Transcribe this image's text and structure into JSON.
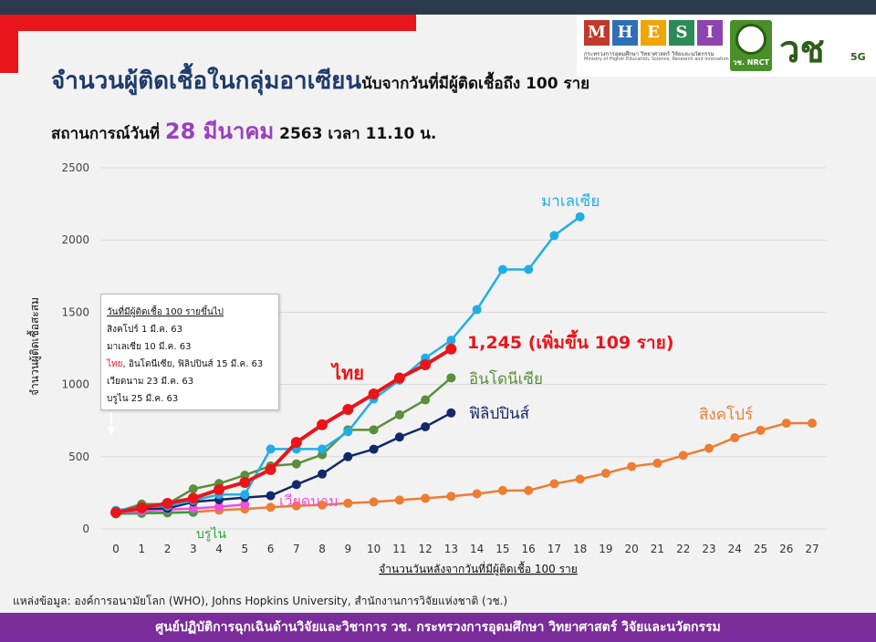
{
  "header": {
    "title_main": "จำนวนผู้ติดเชื้อในกลุ่มอาเซียน",
    "title_sub": "นับจากวันที่มีผู้ติดเชื้อถึง 100 ราย",
    "status_prefix": "สถานการณ์วันที่",
    "status_date": "28 มีนาคม",
    "status_suffix": "2563 เวลา 11.10 น."
  },
  "logos": {
    "mhesi_letters": [
      "M",
      "H",
      "E",
      "S",
      "I"
    ],
    "mhesi_colors": [
      "#c0392b",
      "#2e6fb5",
      "#f0a500",
      "#2e8b57",
      "#8e44ad"
    ],
    "mhesi_thai": "กระทรวงการอุดมศึกษา วิทยาศาสตร์ วิจัยและนวัตกรรม",
    "mhesi_en": "Ministry of Higher Education, Science, Research and Innovation",
    "nrct": "วช. NRCT",
    "vc_mark": "วช",
    "vc_5g": "5G"
  },
  "legend_box": {
    "heading": "วันที่มีผู้ติดเชื้อ 100 รายขึ้นไป",
    "rows": [
      {
        "text": "สิงคโปร์    1 มี.ค. 63",
        "highlight": ""
      },
      {
        "text": "มาเลเซีย  10 มี.ค. 63",
        "highlight": ""
      },
      {
        "text": ", อินโดนีเซีย, ฟิลิปปินส์  15 มี.ค. 63",
        "highlight": "ไทย"
      },
      {
        "text": "เวียดนาม 23 มี.ค. 63",
        "highlight": ""
      },
      {
        "text": "บรูไน   25 มี.ค. 63",
        "highlight": ""
      }
    ]
  },
  "chart_data": {
    "type": "line",
    "xlabel": "จำนวนวันหลังจากวันที่มีผู้ติดเชื้อ 100 ราย",
    "ylabel": "จำนวนผู้ติดเชื้อสะสม",
    "xlim": [
      0,
      27
    ],
    "ylim": [
      0,
      2500
    ],
    "x_ticks": [
      0,
      1,
      2,
      3,
      4,
      5,
      6,
      7,
      8,
      9,
      10,
      11,
      12,
      13,
      14,
      15,
      16,
      17,
      18,
      19,
      20,
      21,
      22,
      23,
      24,
      25,
      26,
      27
    ],
    "y_ticks": [
      0,
      500,
      1000,
      1500,
      2000,
      2500
    ],
    "grid": "horizontal",
    "series": [
      {
        "name": "สิงคโปร์",
        "color": "#ed7d31",
        "x": [
          0,
          1,
          2,
          3,
          4,
          5,
          6,
          7,
          8,
          9,
          10,
          11,
          12,
          13,
          14,
          15,
          16,
          17,
          18,
          19,
          20,
          21,
          22,
          23,
          24,
          25,
          26,
          27
        ],
        "y": [
          106,
          108,
          110,
          117,
          130,
          138,
          150,
          160,
          166,
          178,
          187,
          200,
          212,
          226,
          243,
          266,
          266,
          313,
          345,
          385,
          432,
          455,
          509,
          558,
          631,
          683,
          732,
          732
        ]
      },
      {
        "name": "มาเลเซีย",
        "color": "#21aee6",
        "x": [
          0,
          1,
          2,
          3,
          4,
          5,
          6,
          7,
          8,
          9,
          10,
          11,
          12,
          13,
          14,
          15,
          16,
          17,
          18
        ],
        "y": [
          129,
          149,
          158,
          197,
          238,
          238,
          553,
          553,
          553,
          673,
          900,
          1030,
          1183,
          1306,
          1518,
          1796,
          1796,
          2031,
          2161
        ]
      },
      {
        "name": "ไทย",
        "color": "#e8151b",
        "x": [
          0,
          1,
          2,
          3,
          4,
          5,
          6,
          7,
          8,
          9,
          10,
          11,
          12,
          13
        ],
        "y": [
          114,
          147,
          177,
          212,
          272,
          322,
          411,
          599,
          721,
          827,
          934,
          1045,
          1136,
          1245
        ]
      },
      {
        "name": "อินโดนีเซีย",
        "color": "#5a8f3c",
        "x": [
          0,
          1,
          2,
          3,
          4,
          5,
          6,
          7,
          8,
          9,
          10,
          11,
          12,
          13
        ],
        "y": [
          117,
          172,
          172,
          277,
          314,
          372,
          436,
          450,
          514,
          686,
          686,
          790,
          893,
          1046
        ]
      },
      {
        "name": "ฟิลิปปินส์",
        "color": "#13286b",
        "x": [
          0,
          1,
          2,
          3,
          4,
          5,
          6,
          7,
          8,
          9,
          10,
          11,
          12,
          13
        ],
        "y": [
          111,
          140,
          142,
          187,
          202,
          217,
          230,
          307,
          380,
          500,
          552,
          636,
          707,
          803
        ]
      },
      {
        "name": "เวียดนาม",
        "color": "#f04fd8",
        "x": [
          0,
          1,
          2,
          3,
          4,
          5
        ],
        "y": [
          113,
          123,
          134,
          141,
          153,
          169
        ]
      },
      {
        "name": "บรูไน",
        "color": "#2aa33d",
        "x": [
          0,
          1,
          2,
          3
        ],
        "y": [
          104,
          109,
          114,
          115
        ]
      }
    ],
    "annotations": [
      {
        "text": "มาเลเซีย",
        "color": "#21aee6"
      },
      {
        "text": "1,245 (เพิ่มขึ้น 109 ราย)",
        "color": "#e8151b"
      },
      {
        "text": "ไทย",
        "color": "#e8151b"
      },
      {
        "text": "อินโดนีเซีย",
        "color": "#5a8f3c"
      },
      {
        "text": "ฟิลิปปินส์",
        "color": "#13286b"
      },
      {
        "text": "สิงคโปร์",
        "color": "#ed7d31"
      },
      {
        "text": "เวียดนาม",
        "color": "#f04fd8"
      },
      {
        "text": "บรูไน",
        "color": "#2aa33d"
      }
    ]
  },
  "source": "แหล่งข้อมูล: องค์การอนามัยโลก (WHO), Johns Hopkins University, สำนักงานการวิจัยแห่งชาติ (วช.)",
  "footer": "ศูนย์ปฏิบัติการฉุกเฉินด้านวิจัยและวิชาการ   วช.   กระทรวงการอุดมศึกษา วิทยาศาสตร์ วิจัยและนวัตกรรม"
}
